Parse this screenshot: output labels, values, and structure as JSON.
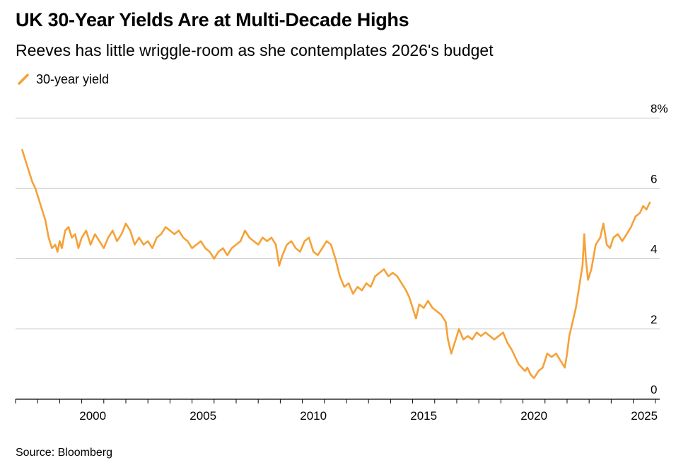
{
  "title": "UK 30-Year Yields Are at Multi-Decade Highs",
  "subtitle": "Reeves has little wriggle-room as she contemplates 2026's budget",
  "source": "Source: Bloomberg",
  "colors": {
    "series": "#f6a137",
    "grid": "#cccccc",
    "axis": "#000000"
  },
  "chart_data": {
    "type": "line",
    "title": "UK 30-Year Yields Are at Multi-Decade Highs",
    "subtitle": "Reeves has little wriggle-room as she contemplates 2026's budget",
    "xlabel": "",
    "ylabel": "",
    "legend_position": "top-left",
    "grid": true,
    "xlim": [
      1997.0,
      2026.2
    ],
    "ylim": [
      0,
      8
    ],
    "y_ticks": [
      0,
      2,
      4,
      6,
      8
    ],
    "y_tick_labels": [
      "0",
      "2",
      "4",
      "6",
      "8%"
    ],
    "x_ticks": [
      2000,
      2005,
      2010,
      2015,
      2020,
      2025
    ],
    "x_tick_labels": [
      "2000",
      "2005",
      "2010",
      "2015",
      "2020",
      "2025"
    ],
    "series": [
      {
        "name": "30-year yield",
        "color": "#f6a137",
        "x": [
          1997.3,
          1997.45,
          1997.6,
          1997.75,
          1997.9,
          1998.05,
          1998.2,
          1998.35,
          1998.5,
          1998.65,
          1998.8,
          1998.9,
          1999.0,
          1999.1,
          1999.25,
          1999.4,
          1999.55,
          1999.7,
          1999.85,
          2000.0,
          2000.2,
          2000.4,
          2000.6,
          2000.8,
          2001.0,
          2001.2,
          2001.4,
          2001.6,
          2001.8,
          2002.0,
          2002.2,
          2002.4,
          2002.6,
          2002.8,
          2003.0,
          2003.2,
          2003.4,
          2003.6,
          2003.8,
          2004.0,
          2004.2,
          2004.4,
          2004.6,
          2004.8,
          2005.0,
          2005.2,
          2005.4,
          2005.6,
          2005.8,
          2006.0,
          2006.2,
          2006.4,
          2006.6,
          2006.8,
          2007.0,
          2007.2,
          2007.4,
          2007.6,
          2007.8,
          2008.0,
          2008.2,
          2008.4,
          2008.6,
          2008.8,
          2008.95,
          2009.1,
          2009.3,
          2009.5,
          2009.7,
          2009.9,
          2010.1,
          2010.3,
          2010.5,
          2010.7,
          2010.9,
          2011.1,
          2011.3,
          2011.5,
          2011.7,
          2011.9,
          2012.1,
          2012.3,
          2012.5,
          2012.7,
          2012.9,
          2013.1,
          2013.3,
          2013.5,
          2013.7,
          2013.9,
          2014.1,
          2014.3,
          2014.5,
          2014.7,
          2014.85,
          2015.0,
          2015.15,
          2015.3,
          2015.5,
          2015.7,
          2015.9,
          2016.1,
          2016.3,
          2016.5,
          2016.6,
          2016.75,
          2016.9,
          2017.1,
          2017.3,
          2017.5,
          2017.7,
          2017.9,
          2018.1,
          2018.3,
          2018.5,
          2018.7,
          2018.9,
          2019.1,
          2019.3,
          2019.5,
          2019.65,
          2019.8,
          2019.95,
          2020.1,
          2020.2,
          2020.35,
          2020.5,
          2020.7,
          2020.9,
          2021.1,
          2021.3,
          2021.5,
          2021.7,
          2021.9,
          2022.0,
          2022.1,
          2022.25,
          2022.4,
          2022.55,
          2022.7,
          2022.78,
          2022.85,
          2022.95,
          2023.1,
          2023.3,
          2023.5,
          2023.65,
          2023.8,
          2023.95,
          2024.1,
          2024.3,
          2024.5,
          2024.7,
          2024.9,
          2025.1,
          2025.3,
          2025.45,
          2025.6,
          2025.75
        ],
        "values": [
          7.1,
          6.8,
          6.5,
          6.2,
          6.0,
          5.7,
          5.4,
          5.1,
          4.6,
          4.3,
          4.4,
          4.2,
          4.5,
          4.3,
          4.8,
          4.9,
          4.6,
          4.7,
          4.3,
          4.6,
          4.8,
          4.4,
          4.7,
          4.5,
          4.3,
          4.6,
          4.8,
          4.5,
          4.7,
          5.0,
          4.8,
          4.4,
          4.6,
          4.4,
          4.5,
          4.3,
          4.6,
          4.7,
          4.9,
          4.8,
          4.7,
          4.8,
          4.6,
          4.5,
          4.3,
          4.4,
          4.5,
          4.3,
          4.2,
          4.0,
          4.2,
          4.3,
          4.1,
          4.3,
          4.4,
          4.5,
          4.8,
          4.6,
          4.5,
          4.4,
          4.6,
          4.5,
          4.6,
          4.4,
          3.8,
          4.1,
          4.4,
          4.5,
          4.3,
          4.2,
          4.5,
          4.6,
          4.2,
          4.1,
          4.3,
          4.5,
          4.4,
          4.0,
          3.5,
          3.2,
          3.3,
          3.0,
          3.2,
          3.1,
          3.3,
          3.2,
          3.5,
          3.6,
          3.7,
          3.5,
          3.6,
          3.5,
          3.3,
          3.1,
          2.9,
          2.6,
          2.3,
          2.7,
          2.6,
          2.8,
          2.6,
          2.5,
          2.4,
          2.2,
          1.7,
          1.3,
          1.6,
          2.0,
          1.7,
          1.8,
          1.7,
          1.9,
          1.8,
          1.9,
          1.8,
          1.7,
          1.8,
          1.9,
          1.6,
          1.4,
          1.2,
          1.0,
          0.9,
          0.8,
          0.9,
          0.7,
          0.6,
          0.8,
          0.9,
          1.3,
          1.2,
          1.3,
          1.1,
          0.9,
          1.3,
          1.8,
          2.2,
          2.6,
          3.2,
          3.8,
          4.7,
          4.0,
          3.4,
          3.7,
          4.4,
          4.6,
          5.0,
          4.4,
          4.3,
          4.6,
          4.7,
          4.5,
          4.7,
          4.9,
          5.2,
          5.3,
          5.5,
          5.4,
          5.6
        ]
      }
    ]
  }
}
